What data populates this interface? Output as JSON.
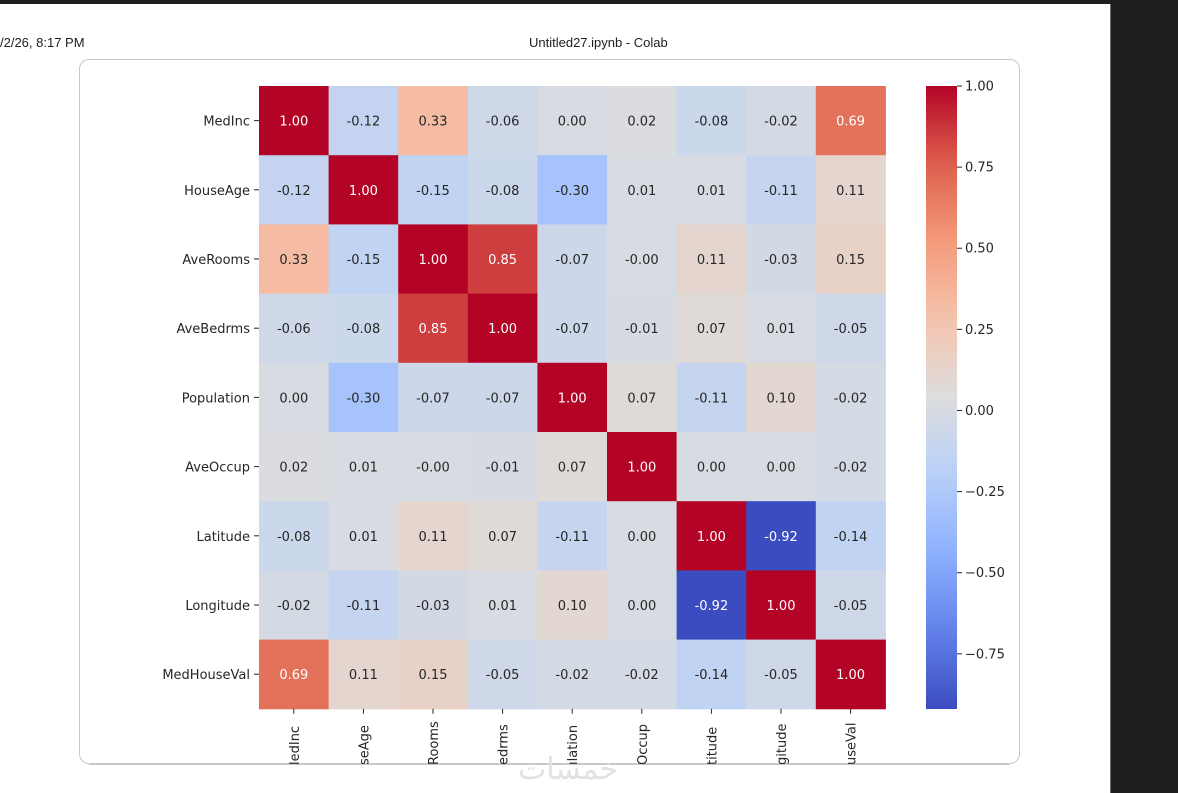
{
  "header": {
    "print_date": "/2/26, 8:17 PM",
    "print_title": "Untitled27.ipynb - Colab"
  },
  "watermark": "خمسات",
  "chart_data": {
    "type": "heatmap",
    "title": "",
    "xlabel": "",
    "ylabel": "",
    "colormap": "coolwarm",
    "vmin": -0.92,
    "vmax": 1.0,
    "row_labels": [
      "MedInc",
      "HouseAge",
      "AveRooms",
      "AveBedrms",
      "Population",
      "AveOccup",
      "Latitude",
      "Longitude",
      "MedHouseVal"
    ],
    "col_labels_visible": [
      "ledInc",
      "seAge",
      "Rooms",
      "edrms",
      "ılation",
      "Occup",
      "titude",
      "gitude",
      "useVal"
    ],
    "col_labels": [
      "MedInc",
      "HouseAge",
      "AveRooms",
      "AveBedrms",
      "Population",
      "AveOccup",
      "Latitude",
      "Longitude",
      "MedHouseVal"
    ],
    "values": [
      [
        "1.00",
        "-0.12",
        "0.33",
        "-0.06",
        "0.00",
        "0.02",
        "-0.08",
        "-0.02",
        "0.69"
      ],
      [
        "-0.12",
        "1.00",
        "-0.15",
        "-0.08",
        "-0.30",
        "0.01",
        "0.01",
        "-0.11",
        "0.11"
      ],
      [
        "0.33",
        "-0.15",
        "1.00",
        "0.85",
        "-0.07",
        "-0.00",
        "0.11",
        "-0.03",
        "0.15"
      ],
      [
        "-0.06",
        "-0.08",
        "0.85",
        "1.00",
        "-0.07",
        "-0.01",
        "0.07",
        "0.01",
        "-0.05"
      ],
      [
        "0.00",
        "-0.30",
        "-0.07",
        "-0.07",
        "1.00",
        "0.07",
        "-0.11",
        "0.10",
        "-0.02"
      ],
      [
        "0.02",
        "0.01",
        "-0.00",
        "-0.01",
        "0.07",
        "1.00",
        "0.00",
        "0.00",
        "-0.02"
      ],
      [
        "-0.08",
        "0.01",
        "0.11",
        "0.07",
        "-0.11",
        "0.00",
        "1.00",
        "-0.92",
        "-0.14"
      ],
      [
        "-0.02",
        "-0.11",
        "-0.03",
        "0.01",
        "0.10",
        "0.00",
        "-0.92",
        "1.00",
        "-0.05"
      ],
      [
        "0.69",
        "0.11",
        "0.15",
        "-0.05",
        "-0.02",
        "-0.02",
        "-0.14",
        "-0.05",
        "1.00"
      ]
    ],
    "colorbar": {
      "ticks": [
        "1.00",
        "0.75",
        "0.50",
        "0.25",
        "0.00",
        "−0.25",
        "−0.50",
        "−0.75"
      ],
      "tick_values": [
        1.0,
        0.75,
        0.5,
        0.25,
        0.0,
        -0.25,
        -0.5,
        -0.75
      ],
      "placement": "right"
    },
    "grid": false
  }
}
